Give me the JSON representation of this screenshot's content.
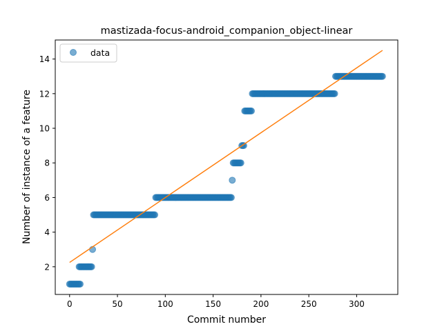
{
  "chart_data": {
    "type": "scatter",
    "title": "mastizada-focus-android_companion_object-linear",
    "xlabel": "Commit number",
    "ylabel": "Number of instance of a feature",
    "xlim": [
      -15,
      343
    ],
    "ylim": [
      0.4,
      15.1
    ],
    "xticks": [
      0,
      50,
      100,
      150,
      200,
      250,
      300
    ],
    "yticks": [
      2,
      4,
      6,
      8,
      10,
      12,
      14
    ],
    "legend": {
      "position": "upper-left",
      "entries": [
        "data"
      ]
    },
    "colors": {
      "data": "#1f77b4",
      "fit": "#ff7f0e"
    },
    "series": [
      {
        "name": "data",
        "kind": "scatter",
        "segments": [
          {
            "x_start": 0,
            "x_end": 11,
            "y": 1
          },
          {
            "x_start": 10,
            "x_end": 23,
            "y": 2
          },
          {
            "x_start": 24,
            "x_end": 24,
            "y": 3
          },
          {
            "x_start": 25,
            "x_end": 89,
            "y": 5
          },
          {
            "x_start": 90,
            "x_end": 169,
            "y": 6
          },
          {
            "x_start": 170,
            "x_end": 170,
            "y": 7
          },
          {
            "x_start": 171,
            "x_end": 179,
            "y": 8
          },
          {
            "x_start": 180,
            "x_end": 182,
            "y": 9
          },
          {
            "x_start": 183,
            "x_end": 190,
            "y": 11
          },
          {
            "x_start": 191,
            "x_end": 277,
            "y": 12
          },
          {
            "x_start": 278,
            "x_end": 327,
            "y": 13
          }
        ]
      },
      {
        "name": "",
        "kind": "line",
        "x": [
          0,
          327
        ],
        "y": [
          2.25,
          14.5
        ]
      }
    ]
  }
}
